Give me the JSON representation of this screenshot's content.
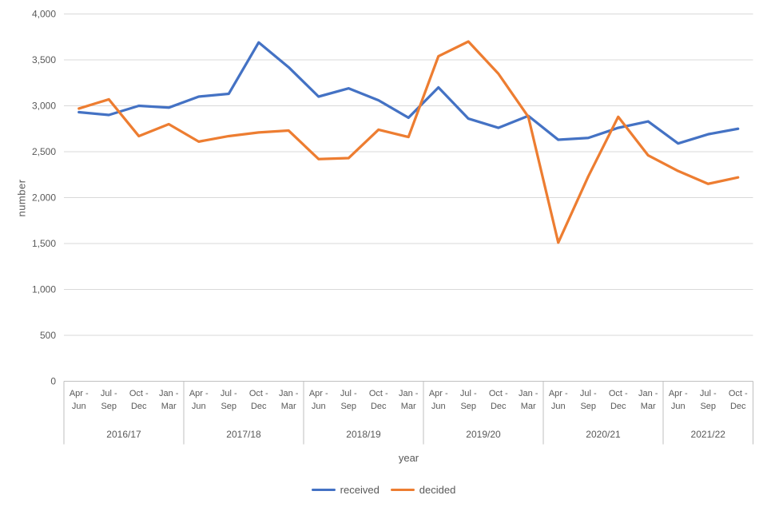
{
  "chart_data": {
    "type": "line",
    "title": "",
    "xlabel": "year",
    "ylabel": "number",
    "grid": true,
    "legend_position": "bottom",
    "y_axis": {
      "title": "number",
      "min": 0,
      "max": 4000,
      "tick_step": 500,
      "tick_labels": [
        "0",
        "500",
        "1,000",
        "1,500",
        "2,000",
        "2,500",
        "3,000",
        "3,500",
        "4,000"
      ]
    },
    "x_axis": {
      "title": "year",
      "groups": [
        {
          "label": "2016/17",
          "quarters": [
            "Apr - Jun",
            "Jul - Sep",
            "Oct - Dec",
            "Jan - Mar"
          ]
        },
        {
          "label": "2017/18",
          "quarters": [
            "Apr - Jun",
            "Jul - Sep",
            "Oct - Dec",
            "Jan - Mar"
          ]
        },
        {
          "label": "2018/19",
          "quarters": [
            "Apr - Jun",
            "Jul - Sep",
            "Oct - Dec",
            "Jan - Mar"
          ]
        },
        {
          "label": "2019/20",
          "quarters": [
            "Apr - Jun",
            "Jul - Sep",
            "Oct - Dec",
            "Jan - Mar"
          ]
        },
        {
          "label": "2020/21",
          "quarters": [
            "Apr - Jun",
            "Jul - Sep",
            "Oct - Dec",
            "Jan - Mar"
          ]
        },
        {
          "label": "2021/22",
          "quarters": [
            "Apr - Jun",
            "Jul - Sep",
            "Oct - Dec"
          ]
        }
      ]
    },
    "series": [
      {
        "name": "received",
        "color": "#4472C4",
        "values": [
          2930,
          2900,
          3000,
          2980,
          3100,
          3130,
          3690,
          3420,
          3100,
          3190,
          3060,
          2870,
          3200,
          2860,
          2760,
          2890,
          2630,
          2650,
          2760,
          2830,
          2590,
          2690,
          2750
        ]
      },
      {
        "name": "decided",
        "color": "#ED7D31",
        "values": [
          2970,
          3070,
          2670,
          2800,
          2610,
          2670,
          2710,
          2730,
          2420,
          2430,
          2740,
          2660,
          3540,
          3700,
          3350,
          2880,
          1510,
          2230,
          2880,
          2460,
          2290,
          2150,
          2220
        ]
      }
    ],
    "colors": {
      "gridline": "#d9d9d9",
      "axis_line": "#bfbfbf",
      "label_text": "#595959"
    }
  }
}
